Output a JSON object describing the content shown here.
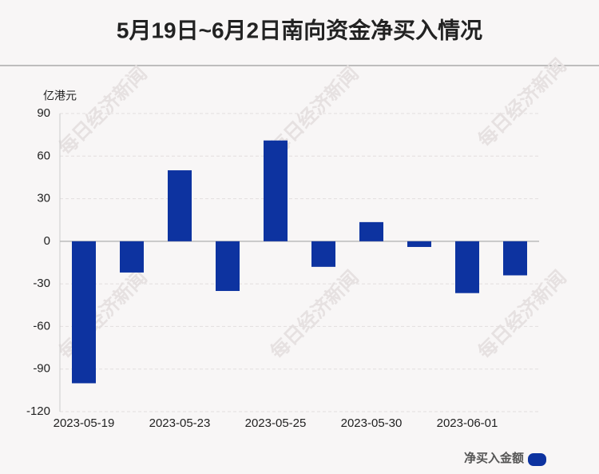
{
  "chart_data": {
    "type": "bar",
    "title": "5月19日~6月2日南向资金净买入情况",
    "y_axis_label": "亿港元",
    "watermark": "每日经济新闻",
    "categories": [
      "2023-05-19",
      null,
      "2023-05-23",
      null,
      "2023-05-25",
      null,
      "2023-05-30",
      null,
      "2023-06-01",
      null
    ],
    "series": [
      {
        "name": "净买入金额",
        "color": "#0d33a0",
        "values": [
          -100,
          -22,
          50,
          -35,
          71,
          -18,
          13.5,
          -4,
          -36.5,
          -24
        ]
      }
    ],
    "ylim": [
      -120,
      90
    ],
    "yticks": [
      -120,
      -90,
      -60,
      -30,
      0,
      30,
      60,
      90
    ],
    "grid": true,
    "legend": "bottom-right"
  }
}
